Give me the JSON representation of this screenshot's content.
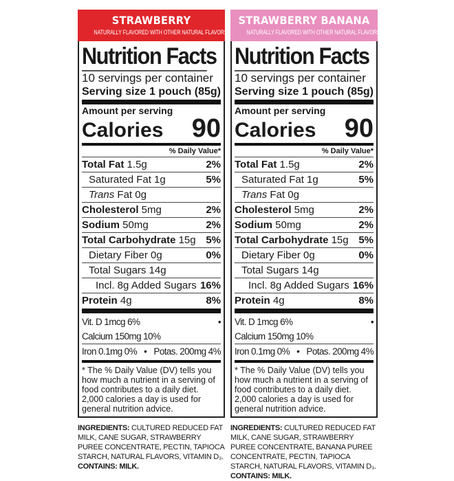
{
  "panels": [
    {
      "flavor": "STRAWBERRY",
      "flavor_subtitle": "NATURALLY FLAVORED WITH OTHER NATURAL FLAVORS",
      "header_color": "#e0262b",
      "title": "Nutrition Facts",
      "servings": "10 servings per container",
      "serving_size_label": "Serving size",
      "serving_size_value": "1 pouch (85g)",
      "amount_per_serving": "Amount per serving",
      "calories_label": "Calories",
      "calories_value": "90",
      "dv_header": "% Daily Value*",
      "nutrients": [
        {
          "bold": "Total Fat",
          "label": " 1.5g",
          "pct": "2%",
          "indent": 0
        },
        {
          "bold": "",
          "label": "Saturated Fat 1g",
          "pct": "5%",
          "indent": 1
        },
        {
          "bold": "",
          "italic": "Trans",
          "label": " Fat 0g",
          "pct": "",
          "indent": 1
        },
        {
          "bold": "Cholesterol",
          "label": " 5mg",
          "pct": "2%",
          "indent": 0
        },
        {
          "bold": "Sodium",
          "label": " 50mg",
          "pct": "2%",
          "indent": 0
        },
        {
          "bold": "Total Carbohydrate",
          "label": " 15g",
          "pct": "5%",
          "indent": 0
        },
        {
          "bold": "",
          "label": "Dietary Fiber 0g",
          "pct": "0%",
          "indent": 1
        },
        {
          "bold": "",
          "label": "Total Sugars 14g",
          "pct": "",
          "indent": 1
        },
        {
          "bold": "",
          "label": "Incl. 8g Added Sugars",
          "pct": "16%",
          "indent": 2
        },
        {
          "bold": "Protein",
          "label": " 4g",
          "pct": "8%",
          "indent": 0
        }
      ],
      "vitamins": [
        {
          "left": "Vit. D 1mcg 6%",
          "right": "Calcium 150mg 10%"
        },
        {
          "left": "Iron 0.1mg 0%",
          "right": "Potas. 200mg 4%"
        }
      ],
      "bullet": "•",
      "footnote": "* The % Daily Value (DV) tells you how much a nutrient in a serving of food contributes to a daily diet. 2,000 calories a day is used for general nutrition advice.",
      "ingredients_label": "INGREDIENTS:",
      "ingredients": " CULTURED REDUCED FAT MILK, CANE SUGAR, STRAWBERRY PUREE CONCENTRATE, PECTIN, TAPIOCA STARCH, NATURAL FLAVORS, VITAMIN D₃.",
      "contains": "CONTAINS: MILK."
    },
    {
      "flavor": "STRAWBERRY BANANA",
      "flavor_subtitle": "NATURALLY FLAVORED WITH OTHER NATURAL FLAVORS",
      "header_color": "#e98fbf",
      "title": "Nutrition Facts",
      "servings": "10 servings per container",
      "serving_size_label": "Serving size",
      "serving_size_value": "1 pouch (85g)",
      "amount_per_serving": "Amount per serving",
      "calories_label": "Calories",
      "calories_value": "90",
      "dv_header": "% Daily Value*",
      "nutrients": [
        {
          "bold": "Total Fat",
          "label": " 1.5g",
          "pct": "2%",
          "indent": 0
        },
        {
          "bold": "",
          "label": "Saturated Fat 1g",
          "pct": "5%",
          "indent": 1
        },
        {
          "bold": "",
          "italic": "Trans",
          "label": " Fat 0g",
          "pct": "",
          "indent": 1
        },
        {
          "bold": "Cholesterol",
          "label": " 5mg",
          "pct": "2%",
          "indent": 0
        },
        {
          "bold": "Sodium",
          "label": " 50mg",
          "pct": "2%",
          "indent": 0
        },
        {
          "bold": "Total Carbohydrate",
          "label": " 15g",
          "pct": "5%",
          "indent": 0
        },
        {
          "bold": "",
          "label": "Dietary Fiber 0g",
          "pct": "0%",
          "indent": 1
        },
        {
          "bold": "",
          "label": "Total Sugars 14g",
          "pct": "",
          "indent": 1
        },
        {
          "bold": "",
          "label": "Incl. 8g Added Sugars",
          "pct": "16%",
          "indent": 2
        },
        {
          "bold": "Protein",
          "label": " 4g",
          "pct": "8%",
          "indent": 0
        }
      ],
      "vitamins": [
        {
          "left": "Vit. D 1mcg 6%",
          "right": "Calcium 150mg 10%"
        },
        {
          "left": "Iron 0.1mg 0%",
          "right": "Potas. 200mg 4%"
        }
      ],
      "bullet": "•",
      "footnote": "* The % Daily Value (DV) tells you how much a nutrient in a serving of food contributes to a daily diet. 2,000 calories a day is used for general nutrition advice.",
      "ingredients_label": "INGREDIENTS:",
      "ingredients": " CULTURED REDUCED FAT MILK, CANE SUGAR, STRAWBERRY PUREE CONCENTRATE, BANANA PUREE CONCENTRATE, PECTIN, TAPIOCA STARCH, NATURAL FLAVORS, VITAMIN D₃.",
      "contains": "CONTAINS: MILK."
    }
  ]
}
